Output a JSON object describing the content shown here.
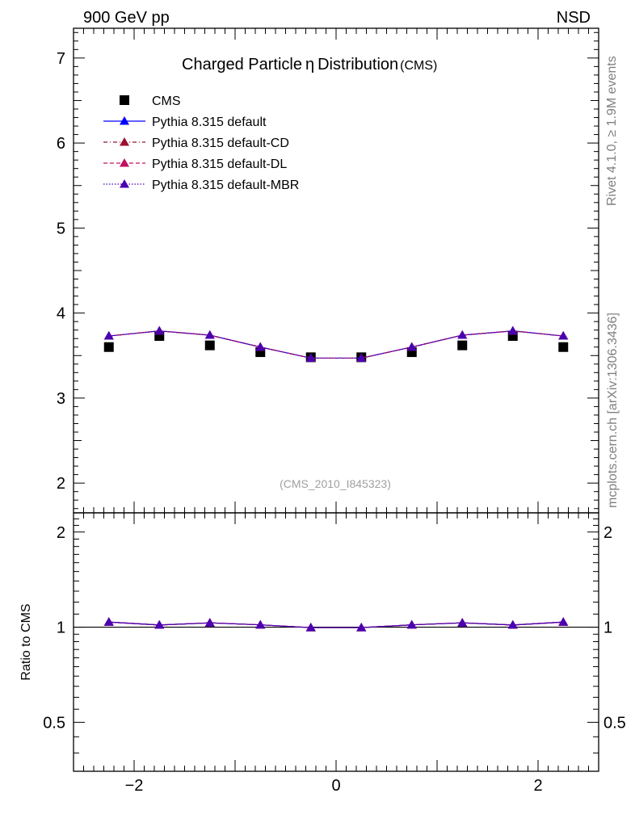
{
  "header": {
    "energy_label": "900 GeV pp",
    "process_label": "NSD"
  },
  "side_labels": {
    "rivet": "Rivet 4.1.0, ≥ 1.9M events",
    "mcplots": "mcplots.cern.ch [arXiv:1306.3436]"
  },
  "watermark": "(CMS_2010_I845323)",
  "chart_data": [
    {
      "type": "scatter",
      "title_main": "Charged Particle",
      "title_symbol": "η",
      "title_rest": "Distribution",
      "title_tag": "(CMS)",
      "xlabel": "",
      "ylabel": "",
      "xlim": [
        -2.6,
        2.6
      ],
      "ylim": [
        1.65,
        7.35
      ],
      "yticks": [
        2,
        3,
        4,
        5,
        6,
        7
      ],
      "ytick_labels": [
        "2",
        "3",
        "4",
        "5",
        "6",
        "7"
      ],
      "x": [
        -2.25,
        -1.75,
        -1.25,
        -0.75,
        -0.25,
        0.25,
        0.75,
        1.25,
        1.75,
        2.25
      ],
      "series": [
        {
          "name": "CMS",
          "color": "#000000",
          "style": "marker-square",
          "values": [
            3.6,
            3.73,
            3.62,
            3.54,
            3.48,
            3.48,
            3.54,
            3.62,
            3.73,
            3.6
          ]
        },
        {
          "name": "Pythia 8.315 default",
          "color": "#0000ff",
          "style": "solid",
          "values": [
            3.73,
            3.79,
            3.74,
            3.6,
            3.47,
            3.47,
            3.6,
            3.74,
            3.79,
            3.73
          ]
        },
        {
          "name": "Pythia 8.315 default-CD",
          "color": "#9b1030",
          "style": "dashdot",
          "values": [
            3.73,
            3.79,
            3.74,
            3.6,
            3.47,
            3.47,
            3.6,
            3.74,
            3.79,
            3.73
          ]
        },
        {
          "name": "Pythia 8.315 default-DL",
          "color": "#c01060",
          "style": "dashed",
          "values": [
            3.73,
            3.79,
            3.74,
            3.6,
            3.47,
            3.47,
            3.6,
            3.74,
            3.79,
            3.73
          ]
        },
        {
          "name": "Pythia 8.315 default-MBR",
          "color": "#4a00b0",
          "style": "dotted",
          "values": [
            3.73,
            3.79,
            3.74,
            3.6,
            3.47,
            3.47,
            3.6,
            3.74,
            3.79,
            3.73
          ]
        }
      ]
    },
    {
      "type": "line",
      "title": "",
      "xlabel": "",
      "ylabel": "Ratio to CMS",
      "xlim": [
        -2.6,
        2.6
      ],
      "ylim": [
        0.35,
        2.3
      ],
      "yticks": [
        0.5,
        1,
        2
      ],
      "ytick_labels": [
        "0.5",
        "1",
        "2"
      ],
      "xticks": [
        -2,
        0,
        2
      ],
      "xtick_labels": [
        "−2",
        "0",
        "2"
      ],
      "reference_value": 1,
      "x": [
        -2.25,
        -1.75,
        -1.25,
        -0.75,
        -0.25,
        0.25,
        0.75,
        1.25,
        1.75,
        2.25
      ],
      "series": [
        {
          "name": "Pythia 8.315 default",
          "color": "#0000ff",
          "values": [
            1.038,
            1.016,
            1.032,
            1.017,
            0.997,
            0.997,
            1.017,
            1.032,
            1.016,
            1.038
          ]
        },
        {
          "name": "Pythia 8.315 default-CD",
          "color": "#9b1030",
          "values": [
            1.038,
            1.016,
            1.032,
            1.017,
            0.997,
            0.997,
            1.017,
            1.032,
            1.016,
            1.038
          ]
        },
        {
          "name": "Pythia 8.315 default-DL",
          "color": "#c01060",
          "values": [
            1.038,
            1.016,
            1.032,
            1.017,
            0.997,
            0.997,
            1.017,
            1.032,
            1.016,
            1.038
          ]
        },
        {
          "name": "Pythia 8.315 default-MBR",
          "color": "#4a00b0",
          "values": [
            1.038,
            1.016,
            1.032,
            1.017,
            0.997,
            0.997,
            1.017,
            1.032,
            1.016,
            1.038
          ]
        }
      ]
    }
  ]
}
